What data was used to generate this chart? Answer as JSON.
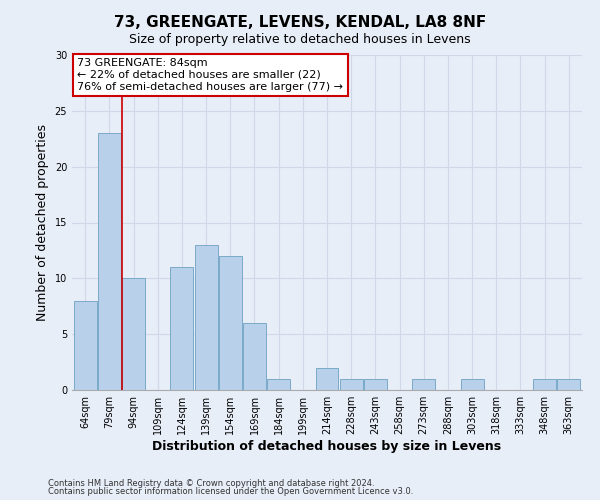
{
  "title": "73, GREENGATE, LEVENS, KENDAL, LA8 8NF",
  "subtitle": "Size of property relative to detached houses in Levens",
  "xlabel": "Distribution of detached houses by size in Levens",
  "ylabel": "Number of detached properties",
  "bins": [
    "64sqm",
    "79sqm",
    "94sqm",
    "109sqm",
    "124sqm",
    "139sqm",
    "154sqm",
    "169sqm",
    "184sqm",
    "199sqm",
    "214sqm",
    "228sqm",
    "243sqm",
    "258sqm",
    "273sqm",
    "288sqm",
    "303sqm",
    "318sqm",
    "333sqm",
    "348sqm",
    "363sqm"
  ],
  "values": [
    8,
    23,
    10,
    0,
    11,
    13,
    12,
    6,
    1,
    0,
    2,
    1,
    1,
    0,
    1,
    0,
    1,
    0,
    0,
    1,
    1
  ],
  "bar_color": "#b8d0ea",
  "bar_edge_color": "#7aaac8",
  "vline_color": "#cc0000",
  "vline_x": 1.5,
  "ylim": [
    0,
    30
  ],
  "yticks": [
    0,
    5,
    10,
    15,
    20,
    25,
    30
  ],
  "annotation_text": "73 GREENGATE: 84sqm\n← 22% of detached houses are smaller (22)\n76% of semi-detached houses are larger (77) →",
  "annotation_box_color": "#ffffff",
  "annotation_box_edge_color": "#cc0000",
  "footer1": "Contains HM Land Registry data © Crown copyright and database right 2024.",
  "footer2": "Contains public sector information licensed under the Open Government Licence v3.0.",
  "bg_color": "#e8eef8",
  "grid_color": "#d0d8e8",
  "title_fontsize": 11,
  "subtitle_fontsize": 9,
  "axis_label_fontsize": 9,
  "tick_fontsize": 7,
  "annotation_fontsize": 8,
  "footer_fontsize": 6
}
